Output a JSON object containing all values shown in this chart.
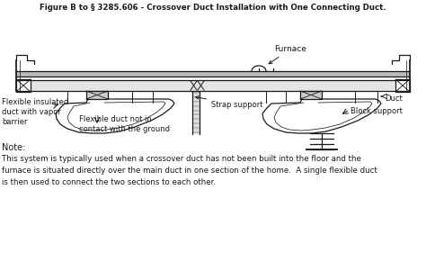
{
  "title": "Figure B to § 3285.606 - Crossover Duct Installation with One Connecting Duct.",
  "note_label": "Note:",
  "note_text1": "This system is typically used when a crossover duct has not been built into the floor and the",
  "note_text2": "furnace is situated directly over the main duct in one section of the home.  A single flexible duct",
  "note_text3": "is then used to connect the two sections to each other.",
  "bg_color": "#ffffff",
  "line_color": "#1a1a1a",
  "label_furnace": "Furnace",
  "label_strap": "Strap support",
  "label_flex_ins": "Flexible insulated\nduct with vapor\nbarrier",
  "label_flex_duct": "Flexible duct not in\ncontact with the ground",
  "label_duct": "Duct",
  "label_block": "Block support"
}
